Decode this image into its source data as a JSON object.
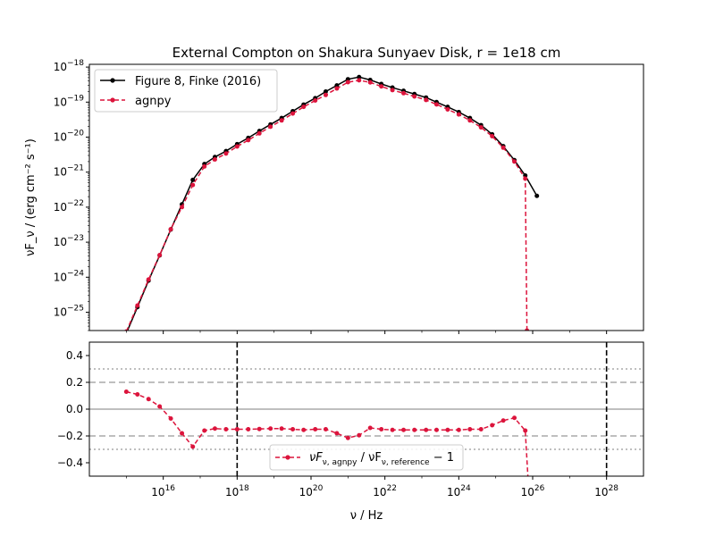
{
  "chart_data": [
    {
      "type": "line",
      "title": "External Compton on Shakura Sunyaev Disk, r = 1e18 cm",
      "xlabel": "",
      "ylabel": "νF_ν / (erg cm⁻² s⁻¹)",
      "xscale": "log",
      "yscale": "log",
      "xlim": [
        100000000000000.0,
        1e+29
      ],
      "ylim": [
        3e-26,
        1.2e-18
      ],
      "x_tick_labels_shown": false,
      "y_ticks": [
        {
          "value": 1e-25,
          "base": "10",
          "exp": "−25"
        },
        {
          "value": 1e-24,
          "base": "10",
          "exp": "−24"
        },
        {
          "value": 1e-23,
          "base": "10",
          "exp": "−23"
        },
        {
          "value": 1e-22,
          "base": "10",
          "exp": "−22"
        },
        {
          "value": 1e-21,
          "base": "10",
          "exp": "−21"
        },
        {
          "value": 1e-20,
          "base": "10",
          "exp": "−20"
        },
        {
          "value": 1e-19,
          "base": "10",
          "exp": "−19"
        },
        {
          "value": 1e-18,
          "base": "10",
          "exp": "−18"
        }
      ],
      "legend_position": "upper-left",
      "series": [
        {
          "name": "Figure 8, Finke (2016)",
          "color": "#000000",
          "linestyle": "solid",
          "points": [
            [
              1000000000000000.0,
              2.5e-26
            ],
            [
              2000000000000000.0,
              1.4e-25
            ],
            [
              4000000000000000.0,
              8e-25
            ],
            [
              8000000000000000.0,
              4.2e-24
            ],
            [
              1.6e+16,
              2.3e-23
            ],
            [
              3.2e+16,
              1.2e-22
            ],
            [
              6.3e+16,
              6e-22
            ],
            [
              1.3e+17,
              1.7e-21
            ],
            [
              2.5e+17,
              2.7e-21
            ],
            [
              5e+17,
              4e-21
            ],
            [
              1e+18,
              6.3e-21
            ],
            [
              2e+18,
              9.5e-21
            ],
            [
              4e+18,
              1.5e-20
            ],
            [
              8e+18,
              2.3e-20
            ],
            [
              1.6e+19,
              3.5e-20
            ],
            [
              3.2e+19,
              5.5e-20
            ],
            [
              6.3e+19,
              8.5e-20
            ],
            [
              1.3e+20,
              1.3e-19
            ],
            [
              2.5e+20,
              2e-19
            ],
            [
              5e+20,
              3e-19
            ],
            [
              1e+21,
              4.5e-19
            ],
            [
              2e+21,
              5.2e-19
            ],
            [
              4e+21,
              4.3e-19
            ],
            [
              8e+21,
              3.3e-19
            ],
            [
              1.6e+22,
              2.6e-19
            ],
            [
              3.2e+22,
              2.1e-19
            ],
            [
              6.3e+22,
              1.7e-19
            ],
            [
              1.3e+23,
              1.35e-19
            ],
            [
              2.5e+23,
              1e-19
            ],
            [
              5e+23,
              7.3e-20
            ],
            [
              1e+24,
              5.2e-20
            ],
            [
              2e+24,
              3.5e-20
            ],
            [
              4e+24,
              2.2e-20
            ],
            [
              8e+24,
              1.2e-20
            ],
            [
              1.6e+25,
              5.5e-21
            ],
            [
              3.2e+25,
              2.2e-21
            ],
            [
              6.3e+25,
              8e-22
            ],
            [
              1.3e+26,
              2.1e-22
            ]
          ]
        },
        {
          "name": "agnpy",
          "color": "#dc143c",
          "linestyle": "dashed",
          "points": [
            [
              1000000000000000.0,
              2.8e-26
            ],
            [
              2000000000000000.0,
              1.55e-25
            ],
            [
              4000000000000000.0,
              8.6e-25
            ],
            [
              8000000000000000.0,
              4.3e-24
            ],
            [
              1.6e+16,
              2.35e-23
            ],
            [
              3.2e+16,
              1e-22
            ],
            [
              6.3e+16,
              4.3e-22
            ],
            [
              1.3e+17,
              1.45e-21
            ],
            [
              2.5e+17,
              2.3e-21
            ],
            [
              5e+17,
              3.4e-21
            ],
            [
              1e+18,
              5.4e-21
            ],
            [
              2e+18,
              8.2e-21
            ],
            [
              4e+18,
              1.28e-20
            ],
            [
              8e+18,
              1.98e-20
            ],
            [
              1.6e+19,
              3e-20
            ],
            [
              3.2e+19,
              4.7e-20
            ],
            [
              6.3e+19,
              7.3e-20
            ],
            [
              1.3e+20,
              1.11e-19
            ],
            [
              2.5e+20,
              1.6e-19
            ],
            [
              5e+20,
              2.45e-19
            ],
            [
              1e+21,
              3.7e-19
            ],
            [
              2e+21,
              4.2e-19
            ],
            [
              4e+21,
              3.65e-19
            ],
            [
              8e+21,
              2.8e-19
            ],
            [
              1.6e+22,
              2.2e-19
            ],
            [
              3.2e+22,
              1.8e-19
            ],
            [
              6.3e+22,
              1.45e-19
            ],
            [
              1.3e+23,
              1.15e-19
            ],
            [
              2.5e+23,
              8.6e-20
            ],
            [
              5e+23,
              6.2e-20
            ],
            [
              1e+24,
              4.45e-20
            ],
            [
              2e+24,
              3e-20
            ],
            [
              4e+24,
              1.9e-20
            ],
            [
              8e+24,
              1.06e-20
            ],
            [
              1.6e+25,
              5e-21
            ],
            [
              3.2e+25,
              2e-21
            ],
            [
              6.3e+25,
              6.5e-22
            ],
            [
              7e+25,
              3e-26
            ]
          ]
        }
      ]
    },
    {
      "type": "line",
      "title": "",
      "xlabel": "ν / Hz",
      "ylabel": "",
      "xscale": "log",
      "yscale": "linear",
      "xlim": [
        100000000000000.0,
        1e+29
      ],
      "ylim": [
        -0.5,
        0.5
      ],
      "x_ticks": [
        {
          "value": 1e+16,
          "base": "10",
          "exp": "16"
        },
        {
          "value": 1e+18,
          "base": "10",
          "exp": "18"
        },
        {
          "value": 1e+20,
          "base": "10",
          "exp": "20"
        },
        {
          "value": 1e+22,
          "base": "10",
          "exp": "22"
        },
        {
          "value": 1e+24,
          "base": "10",
          "exp": "24"
        },
        {
          "value": 1e+26,
          "base": "10",
          "exp": "26"
        },
        {
          "value": 1e+28,
          "base": "10",
          "exp": "28"
        }
      ],
      "y_ticks": [
        "0.4",
        "0.2",
        "0.0",
        "−0.2",
        "−0.4"
      ],
      "legend_position": "lower-center",
      "reference_lines": [
        {
          "axis": "y",
          "value": 0.0,
          "color": "#aaaaaa",
          "style": "solid"
        },
        {
          "axis": "y",
          "value": 0.2,
          "color": "#aaaaaa",
          "style": "dashed"
        },
        {
          "axis": "y",
          "value": -0.2,
          "color": "#aaaaaa",
          "style": "dashed"
        },
        {
          "axis": "y",
          "value": 0.3,
          "color": "#aaaaaa",
          "style": "dotted"
        },
        {
          "axis": "y",
          "value": -0.3,
          "color": "#aaaaaa",
          "style": "dotted"
        },
        {
          "axis": "x",
          "value": 1e+18,
          "color": "#000000",
          "style": "dashed"
        },
        {
          "axis": "x",
          "value": 1e+28,
          "color": "#000000",
          "style": "dashed"
        }
      ],
      "series": [
        {
          "name": "νF_ν,agnpy / νF_ν,reference − 1",
          "legend_main": "νF",
          "legend_sub1": "ν, agnpy",
          "legend_mid": " / νF",
          "legend_sub2": "ν, reference",
          "legend_tail": " − 1",
          "color": "#dc143c",
          "linestyle": "dashed",
          "points": [
            [
              1000000000000000.0,
              0.13
            ],
            [
              2000000000000000.0,
              0.11
            ],
            [
              4000000000000000.0,
              0.075
            ],
            [
              8000000000000000.0,
              0.02
            ],
            [
              1.6e+16,
              -0.07
            ],
            [
              3.2e+16,
              -0.18
            ],
            [
              6.3e+16,
              -0.28
            ],
            [
              1.3e+17,
              -0.16
            ],
            [
              2.5e+17,
              -0.145
            ],
            [
              5e+17,
              -0.15
            ],
            [
              1e+18,
              -0.15
            ],
            [
              2e+18,
              -0.15
            ],
            [
              4e+18,
              -0.148
            ],
            [
              8e+18,
              -0.145
            ],
            [
              1.6e+19,
              -0.145
            ],
            [
              3.2e+19,
              -0.15
            ],
            [
              6.3e+19,
              -0.155
            ],
            [
              1.3e+20,
              -0.15
            ],
            [
              2.5e+20,
              -0.15
            ],
            [
              5e+20,
              -0.18
            ],
            [
              1e+21,
              -0.215
            ],
            [
              2e+21,
              -0.195
            ],
            [
              4e+21,
              -0.14
            ],
            [
              8e+21,
              -0.15
            ],
            [
              1.6e+22,
              -0.155
            ],
            [
              3.2e+22,
              -0.155
            ],
            [
              6.3e+22,
              -0.155
            ],
            [
              1.3e+23,
              -0.155
            ],
            [
              2.5e+23,
              -0.155
            ],
            [
              5e+23,
              -0.155
            ],
            [
              1e+24,
              -0.155
            ],
            [
              2e+24,
              -0.15
            ],
            [
              4e+24,
              -0.15
            ],
            [
              8e+24,
              -0.12
            ],
            [
              1.6e+25,
              -0.085
            ],
            [
              3.2e+25,
              -0.065
            ],
            [
              6.3e+25,
              -0.16
            ],
            [
              7.6e+25,
              -0.55
            ]
          ]
        }
      ]
    }
  ]
}
